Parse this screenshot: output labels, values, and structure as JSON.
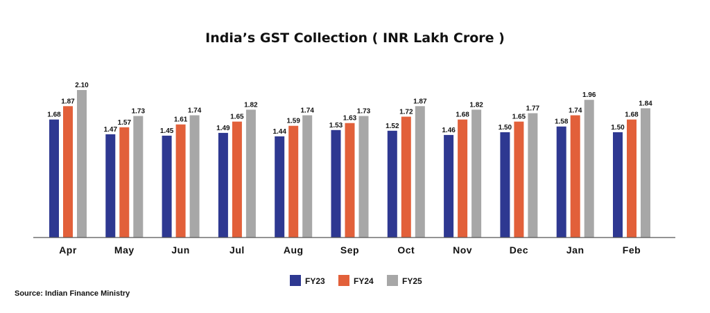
{
  "chart_data": {
    "type": "bar",
    "title": "India’s GST Collection ( INR Lakh Crore )",
    "xlabel": "",
    "ylabel": "",
    "ylim": [
      0,
      2.1
    ],
    "categories": [
      "Apr",
      "May",
      "Jun",
      "Jul",
      "Aug",
      "Sep",
      "Oct",
      "Nov",
      "Dec",
      "Jan",
      "Feb"
    ],
    "series": [
      {
        "name": "FY23",
        "color": "#2e3891",
        "values": [
          1.68,
          1.47,
          1.45,
          1.49,
          1.44,
          1.53,
          1.52,
          1.46,
          1.5,
          1.58,
          1.5
        ],
        "labels": [
          "1.68",
          "1.47",
          "1.45",
          "1.49",
          "1.44",
          "1.53",
          "1.52",
          "1.46",
          "1.50",
          "1.58",
          "1.50"
        ]
      },
      {
        "name": "FY24",
        "color": "#e2603a",
        "values": [
          1.87,
          1.57,
          1.61,
          1.65,
          1.59,
          1.63,
          1.72,
          1.68,
          1.65,
          1.74,
          1.68
        ],
        "labels": [
          "1.87",
          "1.57",
          "1.61",
          "1.65",
          "1.59",
          "1.63",
          "1.72",
          "1.68",
          "1.65",
          "1.74",
          "1.68"
        ]
      },
      {
        "name": "FY25",
        "color": "#a7a7a7",
        "values": [
          2.1,
          1.73,
          1.74,
          1.82,
          1.74,
          1.73,
          1.87,
          1.82,
          1.77,
          1.96,
          1.84
        ],
        "labels": [
          "2.10",
          "1.73",
          "1.74",
          "1.82",
          "1.74",
          "1.73",
          "1.87",
          "1.82",
          "1.77",
          "1.96",
          "1.84"
        ]
      }
    ],
    "grid": false,
    "legend_position": "bottom-center",
    "source": "Source: Indian Finance Ministry"
  }
}
